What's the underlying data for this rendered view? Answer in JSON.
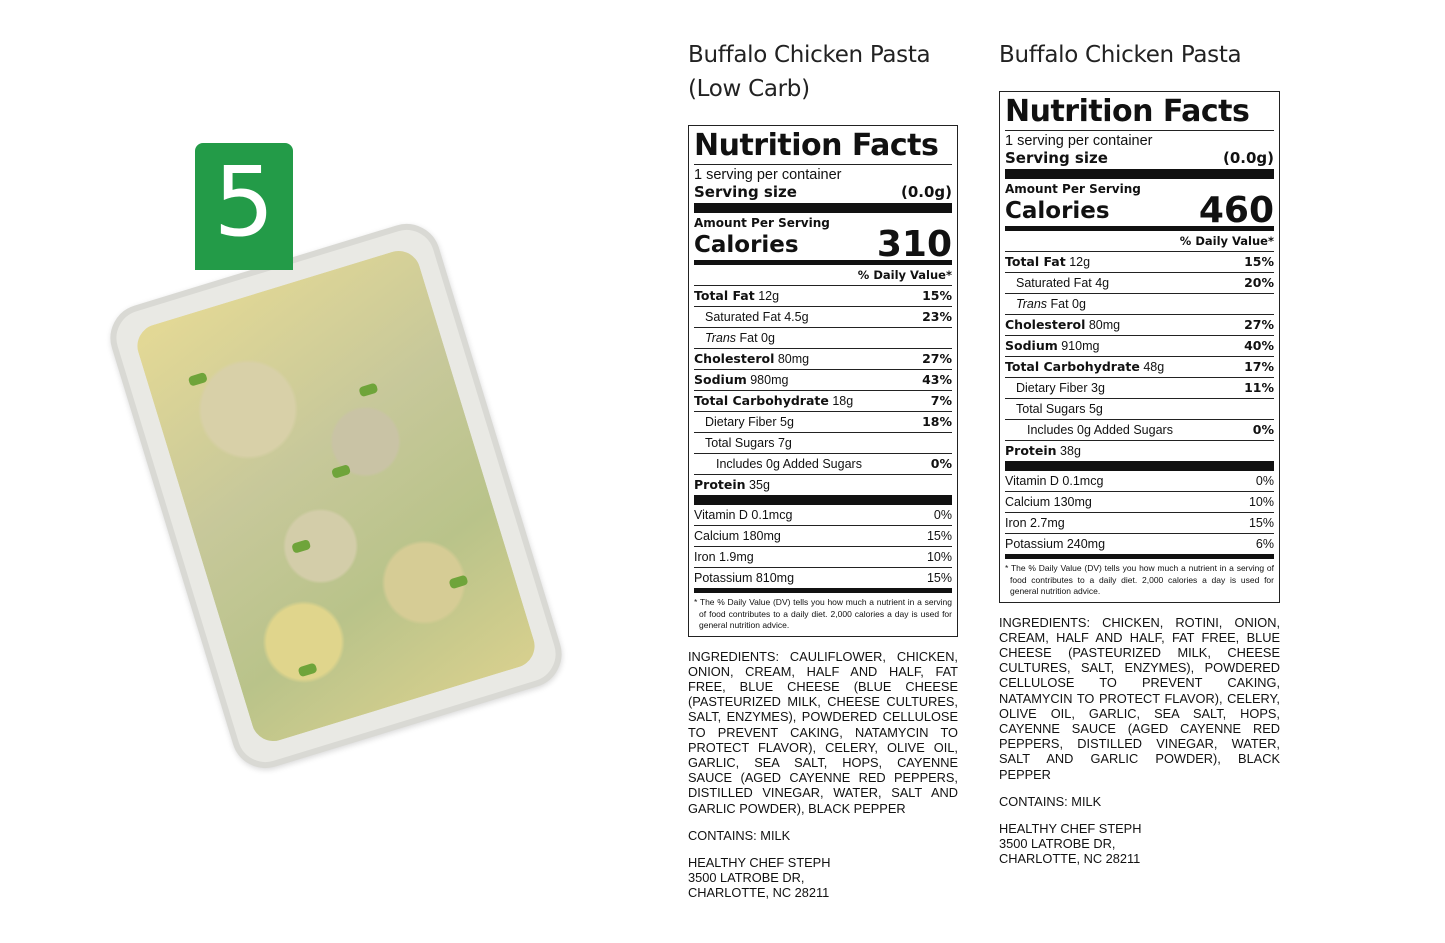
{
  "badge": {
    "number": "5",
    "color": "#239b48"
  },
  "labels": [
    {
      "title_line1": "Buffalo Chicken Pasta",
      "title_line2": "(Low Carb)",
      "heading": "Nutrition Facts",
      "servings": "1 serving per container",
      "serving_size_label": "Serving size",
      "serving_size_value": "(0.0g)",
      "amount_per_serving": "Amount Per Serving",
      "calories_label": "Calories",
      "calories": "310",
      "dv_header": "% Daily Value*",
      "nutrients": [
        {
          "name": "Total Fat",
          "amount": "12g",
          "dv": "15%",
          "level": "main"
        },
        {
          "name": "Saturated Fat",
          "amount": "4.5g",
          "dv": "23%",
          "level": "sub"
        },
        {
          "name": "Trans",
          "suffix": "Fat 0g",
          "dv": "",
          "level": "trans"
        },
        {
          "name": "Cholesterol",
          "amount": "80mg",
          "dv": "27%",
          "level": "main"
        },
        {
          "name": "Sodium",
          "amount": "980mg",
          "dv": "43%",
          "level": "main"
        },
        {
          "name": "Total Carbohydrate",
          "amount": "18g",
          "dv": "7%",
          "level": "main"
        },
        {
          "name": "Dietary Fiber",
          "amount": "5g",
          "dv": "18%",
          "level": "sub"
        },
        {
          "name": "Total Sugars",
          "amount": "7g",
          "dv": "",
          "level": "sugar"
        },
        {
          "name": "Includes 0g Added Sugars",
          "amount": "",
          "dv": "0%",
          "level": "added"
        },
        {
          "name": "Protein",
          "amount": "35g",
          "dv": "",
          "level": "protein"
        }
      ],
      "vitamins": [
        {
          "name": "Vitamin D 0.1mcg",
          "dv": "0%"
        },
        {
          "name": "Calcium 180mg",
          "dv": "15%"
        },
        {
          "name": "Iron 1.9mg",
          "dv": "10%"
        },
        {
          "name": "Potassium 810mg",
          "dv": "15%"
        }
      ],
      "footnote": "* The % Daily Value (DV) tells you how much a nutrient in a serving of food contributes to a daily diet. 2,000 calories a day is used for general nutrition advice.",
      "ingredients": "INGREDIENTS: CAULIFLOWER, CHICKEN, ONION, CREAM, HALF AND HALF, FAT FREE, BLUE CHEESE (BLUE CHEESE (PASTEURIZED MILK, CHEESE CULTURES, SALT, ENZYMES), POWDERED CELLULOSE TO PREVENT CAKING, NATAMYCIN TO PROTECT FLAVOR), CELERY, OLIVE OIL, GARLIC, SEA SALT, HOPS, CAYENNE SAUCE (AGED CAYENNE RED PEPPERS, DISTILLED VINEGAR, WATER, SALT AND GARLIC POWDER), BLACK PEPPER",
      "contains": "CONTAINS: MILK",
      "address": "HEALTHY CHEF STEPH\n3500 LATROBE DR,\nCHARLOTTE, NC 28211"
    },
    {
      "title_line1": "Buffalo Chicken Pasta",
      "title_line2": "",
      "heading": "Nutrition Facts",
      "servings": "1 serving per container",
      "serving_size_label": "Serving size",
      "serving_size_value": "(0.0g)",
      "amount_per_serving": "Amount Per Serving",
      "calories_label": "Calories",
      "calories": "460",
      "dv_header": "% Daily Value*",
      "nutrients": [
        {
          "name": "Total Fat",
          "amount": "12g",
          "dv": "15%",
          "level": "main"
        },
        {
          "name": "Saturated Fat",
          "amount": "4g",
          "dv": "20%",
          "level": "sub"
        },
        {
          "name": "Trans",
          "suffix": "Fat 0g",
          "dv": "",
          "level": "trans"
        },
        {
          "name": "Cholesterol",
          "amount": "80mg",
          "dv": "27%",
          "level": "main"
        },
        {
          "name": "Sodium",
          "amount": "910mg",
          "dv": "40%",
          "level": "main"
        },
        {
          "name": "Total Carbohydrate",
          "amount": "48g",
          "dv": "17%",
          "level": "main"
        },
        {
          "name": "Dietary Fiber",
          "amount": "3g",
          "dv": "11%",
          "level": "sub"
        },
        {
          "name": "Total Sugars",
          "amount": "5g",
          "dv": "",
          "level": "sugar"
        },
        {
          "name": "Includes 0g Added Sugars",
          "amount": "",
          "dv": "0%",
          "level": "added"
        },
        {
          "name": "Protein",
          "amount": "38g",
          "dv": "",
          "level": "protein"
        }
      ],
      "vitamins": [
        {
          "name": "Vitamin D 0.1mcg",
          "dv": "0%"
        },
        {
          "name": "Calcium 130mg",
          "dv": "10%"
        },
        {
          "name": "Iron 2.7mg",
          "dv": "15%"
        },
        {
          "name": "Potassium 240mg",
          "dv": "6%"
        }
      ],
      "footnote": "* The % Daily Value (DV) tells you how much a nutrient in a serving of food contributes to a daily diet. 2,000 calories a day is used for general nutrition advice.",
      "ingredients": "INGREDIENTS: CHICKEN, ROTINI, ONION, CREAM, HALF AND HALF, FAT FREE, BLUE CHEESE (PASTEURIZED MILK, CHEESE CULTURES, SALT, ENZYMES), POWDERED CELLULOSE TO PREVENT CAKING, NATAMYCIN TO PROTECT FLAVOR), CELERY, OLIVE OIL, GARLIC, SEA SALT, HOPS, CAYENNE SAUCE (AGED CAYENNE RED PEPPERS, DISTILLED VINEGAR, WATER, SALT AND GARLIC POWDER), BLACK PEPPER",
      "contains": "CONTAINS: MILK",
      "address": "HEALTHY CHEF STEPH\n3500 LATROBE DR,\nCHARLOTTE, NC 28211"
    }
  ]
}
